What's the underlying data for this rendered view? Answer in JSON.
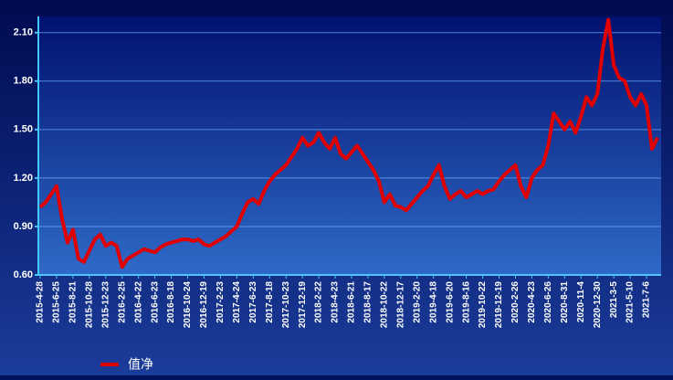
{
  "chart_data": {
    "type": "line",
    "categories": [
      "2015-4-28",
      null,
      null,
      "2015-6-25",
      null,
      null,
      "2015-8-21",
      null,
      null,
      "2015-10-28",
      null,
      null,
      "2015-12-23",
      null,
      null,
      "2016-2-25",
      null,
      null,
      "2016-4-22",
      null,
      null,
      "2016-6-23",
      null,
      null,
      "2016-8-18",
      null,
      null,
      "2016-10-24",
      null,
      null,
      "2016-12-19",
      null,
      null,
      "2017-2-23",
      null,
      null,
      "2017-4-24",
      null,
      null,
      "2017-6-23",
      null,
      null,
      "2017-8-18",
      null,
      null,
      "2017-10-23",
      null,
      null,
      "2017-12-19",
      null,
      null,
      "2018-2-22",
      null,
      null,
      "2018-4-23",
      null,
      null,
      "2018-6-21",
      null,
      null,
      "2018-8-17",
      null,
      null,
      "2018-10-22",
      null,
      null,
      "2018-12-17",
      null,
      null,
      "2019-2-20",
      null,
      null,
      "2019-4-18",
      null,
      null,
      "2019-6-20",
      null,
      null,
      "2019-8-16",
      null,
      null,
      "2019-10-22",
      null,
      null,
      "2019-12-19",
      null,
      null,
      "2020-2-26",
      null,
      null,
      "2020-4-23",
      null,
      null,
      "2020-6-26",
      null,
      null,
      "2020-8-31",
      null,
      null,
      "2020-11-4",
      null,
      null,
      "2020-12-30",
      null,
      null,
      "2021-3-5",
      null,
      null,
      "2021-5-10",
      null,
      null,
      "2021-7-6",
      null,
      null
    ],
    "series": [
      {
        "name": "值净",
        "color": "#e00000",
        "values": [
          1.02,
          1.05,
          1.1,
          1.15,
          0.95,
          0.8,
          0.88,
          0.7,
          0.68,
          0.75,
          0.82,
          0.85,
          0.78,
          0.8,
          0.78,
          0.65,
          0.7,
          0.72,
          0.74,
          0.76,
          0.75,
          0.74,
          0.77,
          0.79,
          0.8,
          0.81,
          0.82,
          0.82,
          0.81,
          0.82,
          0.79,
          0.78,
          0.8,
          0.82,
          0.84,
          0.87,
          0.9,
          0.98,
          1.05,
          1.07,
          1.04,
          1.12,
          1.18,
          1.22,
          1.25,
          1.28,
          1.33,
          1.38,
          1.45,
          1.4,
          1.42,
          1.48,
          1.42,
          1.38,
          1.45,
          1.35,
          1.32,
          1.36,
          1.4,
          1.35,
          1.3,
          1.25,
          1.18,
          1.05,
          1.1,
          1.03,
          1.02,
          1.0,
          1.04,
          1.08,
          1.12,
          1.15,
          1.22,
          1.28,
          1.15,
          1.07,
          1.1,
          1.12,
          1.08,
          1.1,
          1.12,
          1.1,
          1.12,
          1.13,
          1.18,
          1.22,
          1.25,
          1.28,
          1.15,
          1.08,
          1.2,
          1.25,
          1.28,
          1.4,
          1.6,
          1.55,
          1.5,
          1.55,
          1.48,
          1.58,
          1.7,
          1.65,
          1.72,
          2.0,
          2.18,
          1.9,
          1.82,
          1.8,
          1.7,
          1.65,
          1.72,
          1.65,
          1.38,
          1.45
        ]
      }
    ],
    "ylim": [
      0.6,
      2.2
    ],
    "yticks": [
      {
        "value": 0.6,
        "label": "0.60"
      },
      {
        "value": 0.9,
        "label": "0.90"
      },
      {
        "value": 1.2,
        "label": "1.20"
      },
      {
        "value": 1.5,
        "label": "1.50"
      },
      {
        "value": 1.8,
        "label": "1.80"
      },
      {
        "value": 2.1,
        "label": "2.10"
      }
    ],
    "grid": true
  }
}
